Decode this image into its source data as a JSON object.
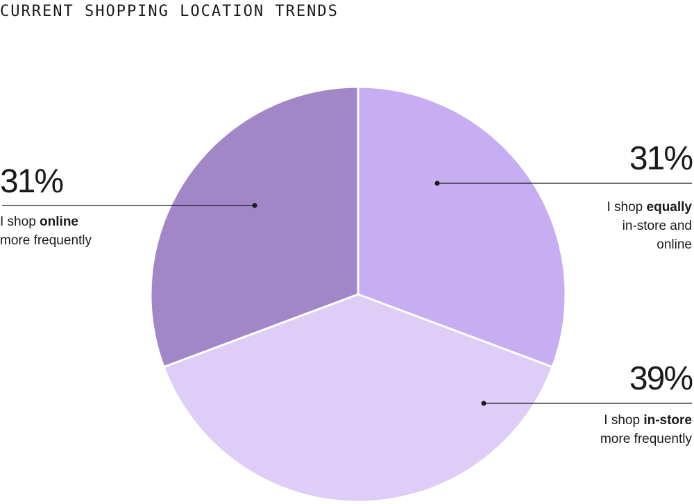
{
  "title": "CURRENT SHOPPING LOCATION TRENDS",
  "colors": {
    "online": "#a187c8",
    "equally": "#c7adf1",
    "in_store": "#ddcdf7",
    "line": "#1a1a1a"
  },
  "chart_data": {
    "type": "pie",
    "title": "CURRENT SHOPPING LOCATION TRENDS",
    "start": "12 o'clock",
    "direction": "clockwise",
    "slices": [
      {
        "key": "equally",
        "value": 31,
        "label": "31%",
        "desc_pre": "I shop ",
        "desc_bold": "equally",
        "desc_line2": "in-store and",
        "desc_line3": "online"
      },
      {
        "key": "in_store",
        "value": 39,
        "label": "39%",
        "desc_pre": "I shop ",
        "desc_bold": "in-store",
        "desc_line2": "more frequently",
        "desc_line3": ""
      },
      {
        "key": "online",
        "value": 31,
        "label": "31%",
        "desc_pre": "I shop ",
        "desc_bold": "online",
        "desc_line2": "more frequently",
        "desc_line3": ""
      }
    ]
  }
}
